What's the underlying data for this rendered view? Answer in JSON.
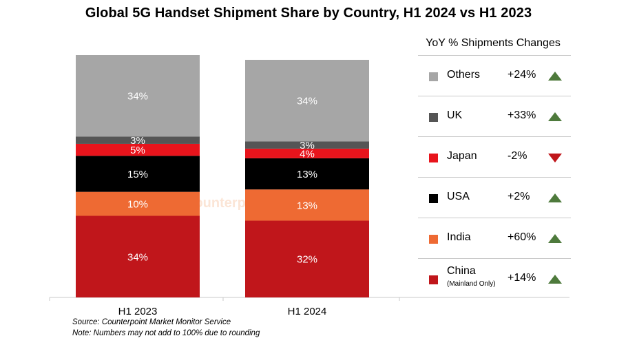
{
  "chart_data": {
    "type": "bar",
    "stacked": true,
    "title": "Global 5G Handset Shipment Share by Country, H1 2024 vs H1 2023",
    "categories": [
      "H1 2023",
      "H1 2024"
    ],
    "series": [
      {
        "name": "China",
        "values": [
          34,
          32
        ],
        "color": "#c0161b"
      },
      {
        "name": "India",
        "values": [
          10,
          13
        ],
        "color": "#ee6a33"
      },
      {
        "name": "USA",
        "values": [
          15,
          13
        ],
        "color": "#000000"
      },
      {
        "name": "Japan",
        "values": [
          5,
          4
        ],
        "color": "#e8141c"
      },
      {
        "name": "UK",
        "values": [
          3,
          3
        ],
        "color": "#555555"
      },
      {
        "name": "Others",
        "values": [
          34,
          34
        ],
        "color": "#a6a6a6"
      }
    ],
    "label_colors": [
      "#ffffff",
      "#ffffff",
      "#ffffff",
      "#ffffff",
      "#ffffff",
      "#ffffff"
    ],
    "ylim": [
      0,
      101
    ]
  },
  "legend": {
    "header": "YoY % Shipments Changes",
    "rows": [
      {
        "name": "Others",
        "sub": "",
        "change": "+24%",
        "direction": "up",
        "color": "#a6a6a6"
      },
      {
        "name": "UK",
        "sub": "",
        "change": "+33%",
        "direction": "up",
        "color": "#555555"
      },
      {
        "name": "Japan",
        "sub": "",
        "change": "-2%",
        "direction": "down",
        "color": "#e8141c"
      },
      {
        "name": "USA",
        "sub": "",
        "change": "+2%",
        "direction": "up",
        "color": "#000000"
      },
      {
        "name": "India",
        "sub": "",
        "change": "+60%",
        "direction": "up",
        "color": "#ee6a33"
      },
      {
        "name": "China",
        "sub": "(Mainland Only)",
        "change": "+14%",
        "direction": "up",
        "color": "#c0161b"
      }
    ],
    "up_color": "#4e7a3c",
    "down_color": "#c0161b"
  },
  "watermark": "Counterpoint",
  "footnotes": {
    "source": "Source: Counterpoint Market Monitor Service",
    "note": "Note: Numbers may not add to 100% due to rounding"
  }
}
